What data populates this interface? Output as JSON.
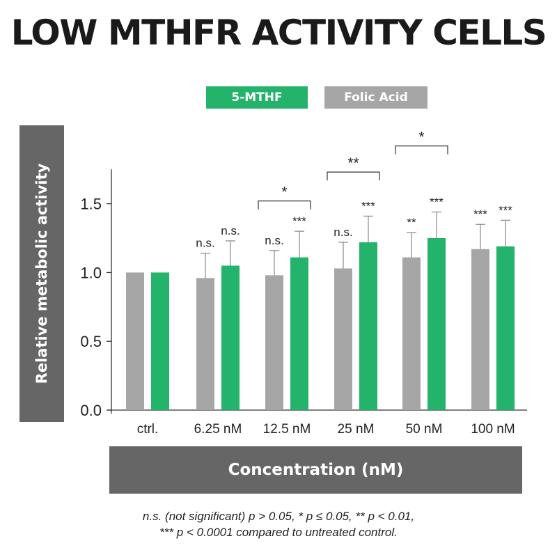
{
  "title": "LOW MTHFR ACTIVITY CELLS",
  "legend": [
    {
      "label": "5-MTHF",
      "color": "#24b36b"
    },
    {
      "label": "Folic Acid",
      "color": "#a6a6a6"
    }
  ],
  "ylabel": "Relative metabolic activity",
  "xlabel": "Concentration (nM)",
  "footnote": {
    "line1": "n.s. (not significant) p > 0.05, * p ≤ 0.05, ** p < 0.01,",
    "line2": "*** p < 0.0001 compared to untreated control."
  },
  "chart_data": {
    "type": "bar",
    "title": "LOW MTHFR ACTIVITY CELLS",
    "xlabel": "Concentration (nM)",
    "ylabel": "Relative metabolic activity",
    "ylim": [
      0,
      1.75
    ],
    "yticks": [
      "0.0",
      "0.5",
      "1.0",
      "1.5"
    ],
    "categories": [
      "ctrl.",
      "6.25 nM",
      "12.5 nM",
      "25 nM",
      "50 nM",
      "100 nM"
    ],
    "series": [
      {
        "name": "Folic Acid",
        "color": "#a6a6a6",
        "values": [
          1.0,
          0.96,
          0.98,
          1.03,
          1.11,
          1.17
        ],
        "errors": [
          0,
          0.18,
          0.18,
          0.19,
          0.18,
          0.18
        ],
        "significance": [
          "",
          "n.s.",
          "n.s.",
          "n.s.",
          "**",
          "***"
        ]
      },
      {
        "name": "5-MTHF",
        "color": "#24b36b",
        "values": [
          1.0,
          1.05,
          1.11,
          1.22,
          1.25,
          1.19
        ],
        "errors": [
          0,
          0.18,
          0.19,
          0.19,
          0.19,
          0.19
        ],
        "significance": [
          "",
          "n.s.",
          "***",
          "***",
          "***",
          "***"
        ]
      }
    ],
    "comparisons": [
      {
        "category": "12.5 nM",
        "label": "*",
        "height": 1.52
      },
      {
        "category": "25 nM",
        "label": "**",
        "height": 1.73
      },
      {
        "category": "50 nM",
        "label": "*",
        "height": 1.92
      }
    ]
  }
}
